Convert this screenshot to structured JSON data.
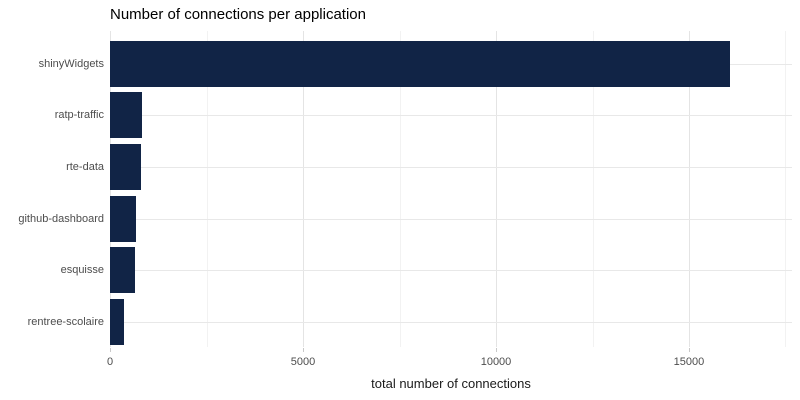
{
  "chart_data": {
    "type": "bar",
    "orientation": "horizontal",
    "title": "Number of connections per application",
    "xlabel": "total number of connections",
    "ylabel": "",
    "categories": [
      "shinyWidgets",
      "ratp-traffic",
      "rte-data",
      "github-dashboard",
      "esquisse",
      "rentree-scolaire"
    ],
    "values": [
      16070,
      830,
      800,
      680,
      640,
      360
    ],
    "xlim": [
      0,
      17670
    ],
    "x_major_ticks": [
      0,
      5000,
      10000,
      15000
    ],
    "x_minor_ticks": [
      2500,
      7500,
      12500,
      17500
    ],
    "grid": "on",
    "legend": "none",
    "bar_color": "#112446",
    "colors": {
      "background": "#ffffff",
      "grid_major": "#e4e4e4",
      "grid_minor": "#f2f2f2",
      "grid_row": "#e8e8e8",
      "tick_mark": "#c9c9c9",
      "axis_text": "#4d4d4d",
      "axis_title": "#1a1a1a",
      "title_text": "#000000"
    }
  }
}
